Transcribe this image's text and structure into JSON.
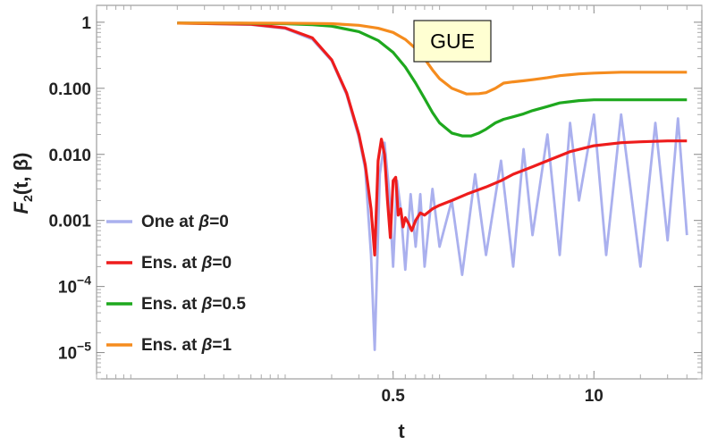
{
  "chart_data": {
    "type": "line",
    "title": "",
    "annotation": "GUE",
    "xlabel": "t",
    "ylabel": "F",
    "ylabel_sub": "2",
    "ylabel_args": "(t, β)",
    "y_scale": "log",
    "x_scale": "log",
    "xlim": [
      0.006,
      50
    ],
    "ylim": [
      4e-06,
      1.8
    ],
    "x_ticks": [
      {
        "value": 0.5,
        "label": "0.5"
      },
      {
        "value": 10,
        "label": "10"
      }
    ],
    "y_ticks": [
      {
        "value": 1,
        "label": "1"
      },
      {
        "value": 0.1,
        "label": "0.100"
      },
      {
        "value": 0.01,
        "label": "0.010"
      },
      {
        "value": 0.001,
        "label": "0.001"
      },
      {
        "value": 0.0001,
        "label": "10",
        "exp": "−4"
      },
      {
        "value": 1e-05,
        "label": "10",
        "exp": "−5"
      }
    ],
    "legend_position": "bottom-left",
    "series": [
      {
        "name": "One at ",
        "beta": "β",
        "beta_value": "=0",
        "color": "#aab0ee",
        "x": [
          0.02,
          0.06,
          0.1,
          0.15,
          0.2,
          0.25,
          0.3,
          0.33,
          0.36,
          0.38,
          0.41,
          0.44,
          0.47,
          0.5,
          0.53,
          0.56,
          0.6,
          0.65,
          0.7,
          0.75,
          0.8,
          0.9,
          1.0,
          1.2,
          1.4,
          1.7,
          2.0,
          2.5,
          3.0,
          3.5,
          4.0,
          5.0,
          6.0,
          7.0,
          8.0,
          10.0,
          12.0,
          15.0,
          20.0,
          25.0,
          30.0,
          35.0,
          40.0
        ],
        "y": [
          0.97,
          0.92,
          0.8,
          0.55,
          0.26,
          0.08,
          0.018,
          0.006,
          0.0003,
          1.1e-05,
          0.005,
          0.015,
          0.003,
          0.0002,
          0.004,
          0.0015,
          0.00018,
          0.0025,
          0.0004,
          0.0025,
          0.0002,
          0.003,
          0.0004,
          0.002,
          0.00015,
          0.005,
          0.0003,
          0.008,
          0.0002,
          0.012,
          0.0006,
          0.02,
          0.0003,
          0.03,
          0.002,
          0.04,
          0.0003,
          0.04,
          0.0002,
          0.03,
          0.0005,
          0.035,
          0.0006
        ]
      },
      {
        "name": "Ens. at ",
        "beta": "β",
        "beta_value": "=0",
        "color": "#ee1c1c",
        "x": [
          0.02,
          0.06,
          0.1,
          0.15,
          0.2,
          0.25,
          0.3,
          0.33,
          0.36,
          0.38,
          0.4,
          0.42,
          0.44,
          0.46,
          0.48,
          0.5,
          0.52,
          0.54,
          0.56,
          0.58,
          0.6,
          0.63,
          0.66,
          0.7,
          0.75,
          0.8,
          0.9,
          1.0,
          1.2,
          1.5,
          2.0,
          2.5,
          3.0,
          4.0,
          5.0,
          7.0,
          10.0,
          15.0,
          20.0,
          30.0,
          40.0
        ],
        "y": [
          0.97,
          0.93,
          0.82,
          0.58,
          0.27,
          0.085,
          0.02,
          0.007,
          0.0015,
          0.0003,
          0.008,
          0.017,
          0.01,
          0.002,
          0.00055,
          0.004,
          0.0045,
          0.0012,
          0.0015,
          0.0008,
          0.0011,
          0.0009,
          0.0007,
          0.001,
          0.0013,
          0.0012,
          0.0015,
          0.0017,
          0.002,
          0.0025,
          0.0032,
          0.004,
          0.005,
          0.0065,
          0.008,
          0.011,
          0.0135,
          0.015,
          0.0155,
          0.016,
          0.016
        ]
      },
      {
        "name": "Ens. at ",
        "beta": "β",
        "beta_value": "=0.5",
        "color": "#1ea81e",
        "x": [
          0.02,
          0.05,
          0.1,
          0.15,
          0.2,
          0.3,
          0.4,
          0.5,
          0.6,
          0.7,
          0.8,
          0.9,
          1.0,
          1.2,
          1.4,
          1.6,
          1.8,
          2.0,
          2.3,
          2.6,
          3.0,
          3.5,
          4.0,
          5.0,
          6.0,
          8.0,
          10.0,
          15.0,
          20.0,
          30.0,
          40.0
        ],
        "y": [
          0.97,
          0.965,
          0.95,
          0.92,
          0.87,
          0.72,
          0.53,
          0.35,
          0.21,
          0.12,
          0.07,
          0.043,
          0.03,
          0.021,
          0.019,
          0.019,
          0.021,
          0.024,
          0.03,
          0.034,
          0.037,
          0.041,
          0.046,
          0.053,
          0.06,
          0.065,
          0.067,
          0.067,
          0.067,
          0.067,
          0.067
        ]
      },
      {
        "name": "Ens. at ",
        "beta": "β",
        "beta_value": "=1",
        "color": "#f58c1e",
        "x": [
          0.02,
          0.05,
          0.1,
          0.15,
          0.2,
          0.3,
          0.4,
          0.5,
          0.6,
          0.7,
          0.8,
          0.9,
          1.0,
          1.2,
          1.5,
          1.8,
          2.0,
          2.3,
          2.6,
          3.0,
          3.5,
          4.0,
          5.0,
          6.0,
          8.0,
          10.0,
          15.0,
          20.0,
          30.0,
          40.0
        ],
        "y": [
          0.97,
          0.968,
          0.965,
          0.96,
          0.95,
          0.9,
          0.81,
          0.7,
          0.55,
          0.4,
          0.28,
          0.19,
          0.14,
          0.1,
          0.082,
          0.083,
          0.086,
          0.1,
          0.12,
          0.125,
          0.13,
          0.135,
          0.145,
          0.155,
          0.165,
          0.17,
          0.175,
          0.175,
          0.175,
          0.175
        ]
      }
    ]
  }
}
